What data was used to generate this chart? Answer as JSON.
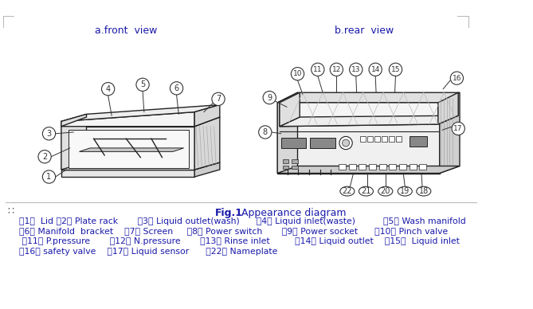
{
  "title_front": "a.front  view",
  "title_rear": "b.rear  view",
  "fig_label": "Fig.1",
  "fig_caption_rest": "   Appearance diagram",
  "legend_lines": [
    "（1）  Lid （2） Plate rack       （3） Liquid outlet(wash)      （4） Liquid inlet(waste)          （5） Wash manifold",
    "（6） Manifold  bracket    （7） Screen     （8） Power switch       （9） Power socket      ）10） Pinch valve",
    " （11） P.pressure       （12） N.pressure       （13） Rinse inlet         （14） Liquid outlet    （15）  Liquid inlet",
    "（16） safety valve    （17） Liquid sensor      （22） Nameplate"
  ],
  "bg_color": "#ffffff",
  "text_color": "#1a1aaa",
  "line_color": "#222222",
  "label_color": "#333333"
}
